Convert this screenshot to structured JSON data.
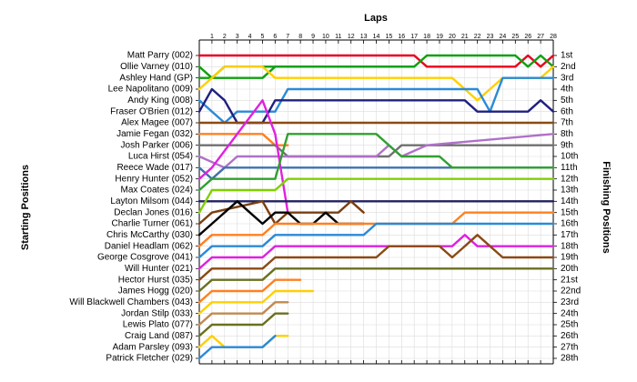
{
  "chart_data": {
    "type": "line",
    "title": "Laps",
    "xlabel": "Laps",
    "ylabel_left": "Starting Positions",
    "ylabel_right": "Finishing Positions",
    "x_ticks": [
      "1",
      "2",
      "3",
      "4",
      "5",
      "6",
      "7",
      "8",
      "9",
      "10",
      "11",
      "12",
      "13",
      "14",
      "15",
      "16",
      "17",
      "18",
      "19",
      "20",
      "21",
      "22",
      "23",
      "24",
      "25",
      "26",
      "27",
      "28"
    ],
    "xlim": [
      0,
      28
    ],
    "ylim": [
      1,
      28
    ],
    "y_inverted": true,
    "grid": true,
    "drivers": [
      "Matt Parry (002)",
      "Ollie Varney (010)",
      "Ashley Hand (GP)",
      "Lee Napolitano (009)",
      "Andy King (008)",
      "Fraser O'Brien (012)",
      "Alex Magee (007)",
      "Jamie Fegan (032)",
      "Josh Parker (006)",
      "Luca Hirst (054)",
      "Reece Wade (017)",
      "Henry Hunter (052)",
      "Max Coates (024)",
      "Layton Milsom (044)",
      "Declan Jones (016)",
      "Charlie Turner (061)",
      "Chris McCarthy (030)",
      "Daniel Headlam (062)",
      "George Cosgrove (041)",
      "Will Hunter (021)",
      "Hector Hurst (035)",
      "James Hogg (020)",
      "Will Blackwell Chambers (043)",
      "Jordan Stilp (033)",
      "Lewis Plato (077)",
      "Craig Land (087)",
      "Adam Parsley (093)",
      "Patrick Fletcher (029)"
    ],
    "finishing_labels": [
      "1st",
      "2nd",
      "3rd",
      "4th",
      "5th",
      "6th",
      "7th",
      "8th",
      "9th",
      "10th",
      "11th",
      "12th",
      "13th",
      "14th",
      "15th",
      "16th",
      "17th",
      "18th",
      "19th",
      "20th",
      "21st",
      "22nd",
      "23rd",
      "24th",
      "25th",
      "26th",
      "27th",
      "28th"
    ],
    "series": [
      {
        "color": "#e8001c",
        "points": [
          [
            0,
            1
          ],
          [
            17,
            1
          ],
          [
            18,
            2
          ],
          [
            25,
            2
          ],
          [
            26,
            1
          ],
          [
            27,
            2
          ],
          [
            28,
            1
          ]
        ]
      },
      {
        "color": "#10a010",
        "points": [
          [
            0,
            2
          ],
          [
            1,
            3
          ],
          [
            2,
            2
          ],
          [
            17,
            2
          ],
          [
            18,
            1
          ],
          [
            25,
            1
          ],
          [
            26,
            2
          ],
          [
            27,
            1
          ],
          [
            28,
            2
          ]
        ]
      },
      {
        "color": "#10a010",
        "points": [
          [
            0,
            3
          ],
          [
            2,
            3
          ],
          [
            5,
            3
          ],
          [
            6,
            2
          ],
          [
            17,
            2
          ]
        ]
      },
      {
        "color": "#ffd000",
        "points": [
          [
            0,
            4
          ],
          [
            1,
            3
          ],
          [
            2,
            2
          ],
          [
            5,
            2
          ],
          [
            6,
            3
          ],
          [
            20,
            3
          ],
          [
            21,
            4
          ],
          [
            22,
            5
          ],
          [
            23,
            4
          ],
          [
            24,
            3
          ],
          [
            27,
            3
          ],
          [
            28,
            2
          ]
        ]
      },
      {
        "color": "#2a8ad8",
        "points": [
          [
            0,
            5
          ],
          [
            1,
            6
          ],
          [
            2,
            7
          ],
          [
            3,
            6
          ],
          [
            6,
            6
          ],
          [
            7,
            4
          ],
          [
            21,
            4
          ],
          [
            22,
            4
          ],
          [
            23,
            6
          ],
          [
            24,
            3
          ],
          [
            28,
            3
          ]
        ]
      },
      {
        "color": "#202080",
        "points": [
          [
            0,
            6
          ],
          [
            1,
            4
          ],
          [
            2,
            5
          ],
          [
            3,
            7
          ],
          [
            5,
            7
          ],
          [
            6,
            5
          ],
          [
            21,
            5
          ],
          [
            22,
            6
          ],
          [
            26,
            6
          ],
          [
            27,
            5
          ],
          [
            28,
            6
          ]
        ]
      },
      {
        "color": "#8b4a14",
        "points": [
          [
            0,
            7
          ],
          [
            1,
            7
          ],
          [
            6,
            7
          ],
          [
            7,
            7
          ],
          [
            28,
            7
          ]
        ]
      },
      {
        "color": "#ff8020",
        "points": [
          [
            0,
            8
          ],
          [
            1,
            8
          ],
          [
            5,
            8
          ],
          [
            6,
            9
          ],
          [
            7,
            9
          ]
        ]
      },
      {
        "color": "#707070",
        "points": [
          [
            0,
            9
          ],
          [
            1,
            9
          ],
          [
            2,
            9
          ],
          [
            6,
            9
          ],
          [
            7,
            10
          ],
          [
            15,
            10
          ],
          [
            16,
            9
          ],
          [
            28,
            9
          ]
        ]
      },
      {
        "color": "#b070c8",
        "points": [
          [
            0,
            10
          ],
          [
            2,
            11
          ],
          [
            3,
            10
          ],
          [
            14,
            10
          ],
          [
            15,
            9
          ],
          [
            16,
            10
          ],
          [
            18,
            9
          ],
          [
            28,
            8
          ]
        ]
      },
      {
        "color": "#4070b0",
        "points": [
          [
            0,
            11
          ],
          [
            1,
            12
          ],
          [
            2,
            11
          ],
          [
            28,
            11
          ]
        ]
      },
      {
        "color": "#e020e0",
        "points": [
          [
            0,
            12
          ],
          [
            1,
            11
          ],
          [
            5,
            5
          ],
          [
            6,
            8
          ],
          [
            7,
            15
          ]
        ]
      },
      {
        "color": "#30a030",
        "points": [
          [
            0,
            13
          ],
          [
            1,
            12
          ],
          [
            6,
            12
          ],
          [
            7,
            8
          ],
          [
            13,
            8
          ],
          [
            14,
            8
          ],
          [
            15,
            9
          ],
          [
            16,
            10
          ],
          [
            19,
            10
          ],
          [
            20,
            11
          ],
          [
            28,
            11
          ]
        ]
      },
      {
        "color": "#202060",
        "points": [
          [
            0,
            14
          ],
          [
            1,
            14
          ],
          [
            28,
            14
          ]
        ]
      },
      {
        "color": "#80d000",
        "points": [
          [
            0,
            15
          ],
          [
            1,
            13
          ],
          [
            6,
            13
          ],
          [
            7,
            12
          ],
          [
            28,
            12
          ]
        ]
      },
      {
        "color": "#7b3f10",
        "points": [
          [
            0,
            16
          ],
          [
            1,
            15
          ],
          [
            5,
            14
          ],
          [
            6,
            16
          ],
          [
            7,
            15
          ],
          [
            11,
            15
          ],
          [
            12,
            14
          ],
          [
            13,
            15
          ]
        ]
      },
      {
        "color": "#000000",
        "points": [
          [
            0,
            17
          ],
          [
            1,
            16
          ],
          [
            3,
            14
          ],
          [
            4,
            15
          ],
          [
            5,
            16
          ],
          [
            6,
            15
          ],
          [
            7,
            15
          ],
          [
            8,
            16
          ],
          [
            9,
            16
          ],
          [
            10,
            15
          ],
          [
            11,
            16
          ],
          [
            13,
            16
          ]
        ]
      },
      {
        "color": "#ff8020",
        "points": [
          [
            0,
            18
          ],
          [
            1,
            17
          ],
          [
            5,
            17
          ],
          [
            6,
            16
          ],
          [
            7,
            16
          ],
          [
            20,
            16
          ],
          [
            21,
            15
          ],
          [
            28,
            15
          ]
        ]
      },
      {
        "color": "#2a8ad8",
        "points": [
          [
            0,
            19
          ],
          [
            1,
            18
          ],
          [
            5,
            18
          ],
          [
            6,
            17
          ],
          [
            7,
            17
          ],
          [
            13,
            17
          ],
          [
            14,
            16
          ],
          [
            28,
            16
          ]
        ]
      },
      {
        "color": "#e020e0",
        "points": [
          [
            0,
            20
          ],
          [
            1,
            19
          ],
          [
            5,
            19
          ],
          [
            6,
            18
          ],
          [
            7,
            18
          ],
          [
            20,
            18
          ],
          [
            21,
            17
          ],
          [
            22,
            18
          ],
          [
            28,
            18
          ]
        ]
      },
      {
        "color": "#8b4a14",
        "points": [
          [
            0,
            21
          ],
          [
            1,
            20
          ],
          [
            5,
            20
          ],
          [
            6,
            19
          ],
          [
            14,
            19
          ],
          [
            15,
            18
          ],
          [
            19,
            18
          ],
          [
            20,
            19
          ],
          [
            21,
            18
          ],
          [
            22,
            17
          ],
          [
            23,
            18
          ],
          [
            24,
            19
          ],
          [
            28,
            19
          ]
        ]
      },
      {
        "color": "#6a7020",
        "points": [
          [
            0,
            22
          ],
          [
            1,
            21
          ],
          [
            5,
            21
          ],
          [
            6,
            20
          ],
          [
            28,
            20
          ]
        ]
      },
      {
        "color": "#ff8020",
        "points": [
          [
            0,
            23
          ],
          [
            1,
            22
          ],
          [
            5,
            22
          ],
          [
            6,
            21
          ],
          [
            8,
            21
          ]
        ]
      },
      {
        "color": "#ffd000",
        "points": [
          [
            0,
            24
          ],
          [
            1,
            23
          ],
          [
            5,
            23
          ],
          [
            6,
            22
          ],
          [
            9,
            22
          ]
        ]
      },
      {
        "color": "#c08a50",
        "points": [
          [
            0,
            25
          ],
          [
            1,
            24
          ],
          [
            5,
            24
          ],
          [
            6,
            23
          ],
          [
            7,
            23
          ]
        ]
      },
      {
        "color": "#6a7020",
        "points": [
          [
            0,
            26
          ],
          [
            1,
            25
          ],
          [
            5,
            25
          ],
          [
            6,
            24
          ],
          [
            7,
            24
          ]
        ]
      },
      {
        "color": "#ffd000",
        "points": [
          [
            0,
            27
          ],
          [
            1,
            26
          ],
          [
            2,
            27
          ],
          [
            5,
            27
          ],
          [
            6,
            26
          ],
          [
            7,
            26
          ]
        ]
      },
      {
        "color": "#2a8ad8",
        "points": [
          [
            0,
            28
          ],
          [
            1,
            27
          ],
          [
            5,
            27
          ],
          [
            6,
            26
          ]
        ]
      }
    ]
  }
}
